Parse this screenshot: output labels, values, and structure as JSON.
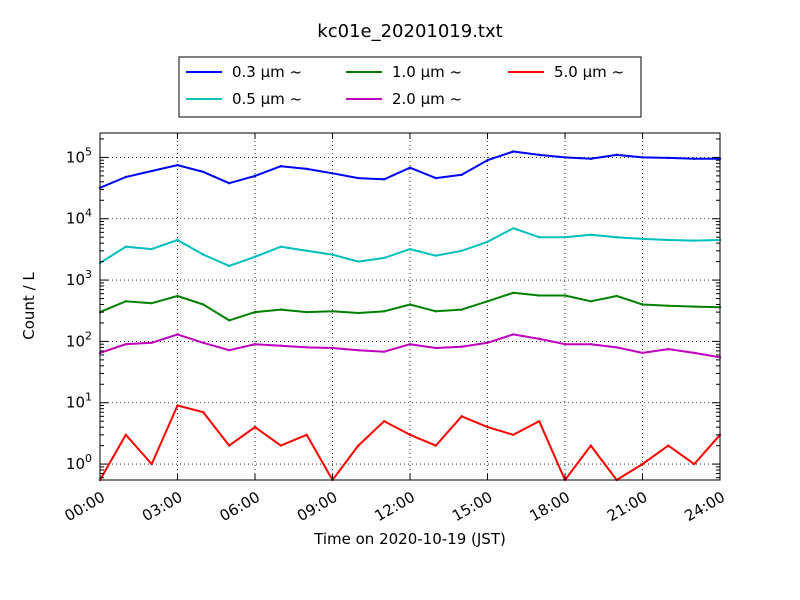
{
  "chart_data": {
    "type": "line",
    "title": "kc01e_20201019.txt",
    "xlabel": "Time on 2020-10-19 (JST)",
    "ylabel": "Count / L",
    "y_scale": "log",
    "ylim": [
      0.55,
      250000
    ],
    "xlim": [
      "00:00",
      "24:00"
    ],
    "grid": true,
    "legend_position": "top-center, above plot",
    "x_tick_labels": [
      "00:00",
      "03:00",
      "06:00",
      "09:00",
      "12:00",
      "15:00",
      "18:00",
      "21:00",
      "24:00"
    ],
    "y_tick_labels": [
      {
        "value": 1,
        "base": "10",
        "exp": "0"
      },
      {
        "value": 10,
        "base": "10",
        "exp": "1"
      },
      {
        "value": 100,
        "base": "10",
        "exp": "2"
      },
      {
        "value": 1000,
        "base": "10",
        "exp": "3"
      },
      {
        "value": 10000,
        "base": "10",
        "exp": "4"
      },
      {
        "value": 100000,
        "base": "10",
        "exp": "5"
      }
    ],
    "x": [
      "00:00",
      "01:00",
      "02:00",
      "03:00",
      "04:00",
      "05:00",
      "06:00",
      "07:00",
      "08:00",
      "09:00",
      "10:00",
      "11:00",
      "12:00",
      "13:00",
      "14:00",
      "15:00",
      "16:00",
      "17:00",
      "18:00",
      "19:00",
      "20:00",
      "21:00",
      "22:00",
      "23:00",
      "24:00"
    ],
    "series": [
      {
        "name": "0.3 μm ~",
        "color": "#0000ff",
        "values": [
          32000,
          48000,
          60000,
          75000,
          58000,
          38000,
          50000,
          72000,
          65000,
          55000,
          46000,
          44000,
          68000,
          46000,
          52000,
          90000,
          125000,
          110000,
          100000,
          95000,
          110000,
          100000,
          98000,
          95000,
          95000
        ]
      },
      {
        "name": "0.5 μm ~",
        "color": "#00bfbf",
        "values": [
          1900,
          3500,
          3200,
          4500,
          2600,
          1700,
          2400,
          3500,
          3000,
          2600,
          2000,
          2300,
          3200,
          2500,
          3000,
          4200,
          7000,
          5000,
          5000,
          5500,
          5000,
          4700,
          4500,
          4400,
          4500
        ]
      },
      {
        "name": "1.0 μm ~",
        "color": "#008000",
        "values": [
          300,
          450,
          420,
          550,
          400,
          220,
          300,
          330,
          300,
          310,
          290,
          310,
          400,
          310,
          330,
          450,
          620,
          560,
          560,
          450,
          550,
          400,
          380,
          370,
          360
        ]
      },
      {
        "name": "2.0 μm ~",
        "color": "#bf00bf",
        "values": [
          65,
          90,
          95,
          130,
          95,
          72,
          90,
          85,
          80,
          78,
          72,
          68,
          90,
          78,
          82,
          95,
          130,
          110,
          90,
          90,
          80,
          65,
          75,
          65,
          55
        ]
      },
      {
        "name": "5.0 μm ~",
        "color": "#ff0000",
        "values": [
          0.5,
          3,
          1,
          9,
          7,
          2,
          4,
          2,
          3,
          0.5,
          2,
          5,
          3,
          2,
          6,
          4,
          3,
          5,
          0.5,
          2,
          0.5,
          1,
          2,
          1,
          3
        ]
      }
    ]
  }
}
